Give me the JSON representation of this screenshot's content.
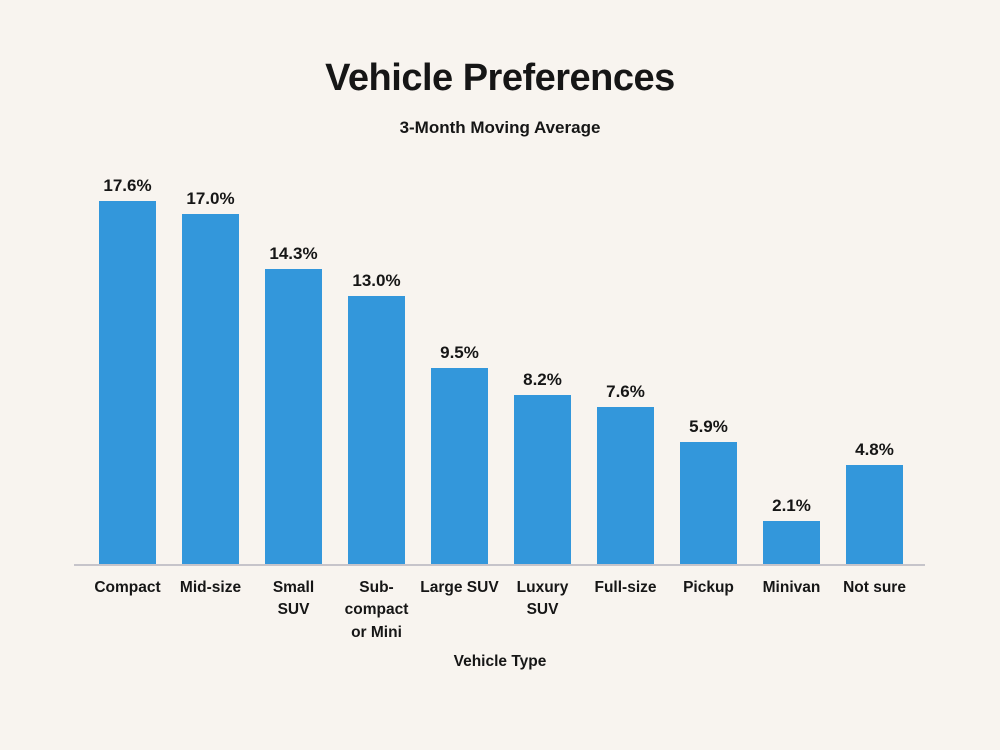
{
  "header": {
    "title": "Vehicle Preferences",
    "subtitle": "3-Month Moving Average"
  },
  "axis": {
    "xlabel": "Vehicle Type"
  },
  "colors": {
    "background": "#f8f4ef",
    "bar": "#3397db",
    "axis_line": "#c6c4ca",
    "text": "#161616"
  },
  "chart_data": {
    "type": "bar",
    "title": "Vehicle Preferences",
    "subtitle": "3-Month Moving Average",
    "xlabel": "Vehicle Type",
    "ylabel": "",
    "categories": [
      "Compact",
      "Mid-size",
      "Small SUV",
      "Sub-compact or Mini",
      "Large SUV",
      "Luxury SUV",
      "Full-size",
      "Pickup",
      "Minivan",
      "Not sure"
    ],
    "tick_labels": [
      "Compact",
      "Mid-size",
      "Small\nSUV",
      "Sub-\ncompact\nor Mini",
      "Large SUV",
      "Luxury\nSUV",
      "Full-size",
      "Pickup",
      "Minivan",
      "Not sure"
    ],
    "values": [
      17.6,
      17.0,
      14.3,
      13.0,
      9.5,
      8.2,
      7.6,
      5.9,
      2.1,
      4.8
    ],
    "value_labels": [
      "17.6%",
      "17.0%",
      "14.3%",
      "13.0%",
      "9.5%",
      "8.2%",
      "7.6%",
      "5.9%",
      "2.1%",
      "4.8%"
    ],
    "unit": "%",
    "y_axis_visible": false,
    "grid": false,
    "legend": false
  }
}
